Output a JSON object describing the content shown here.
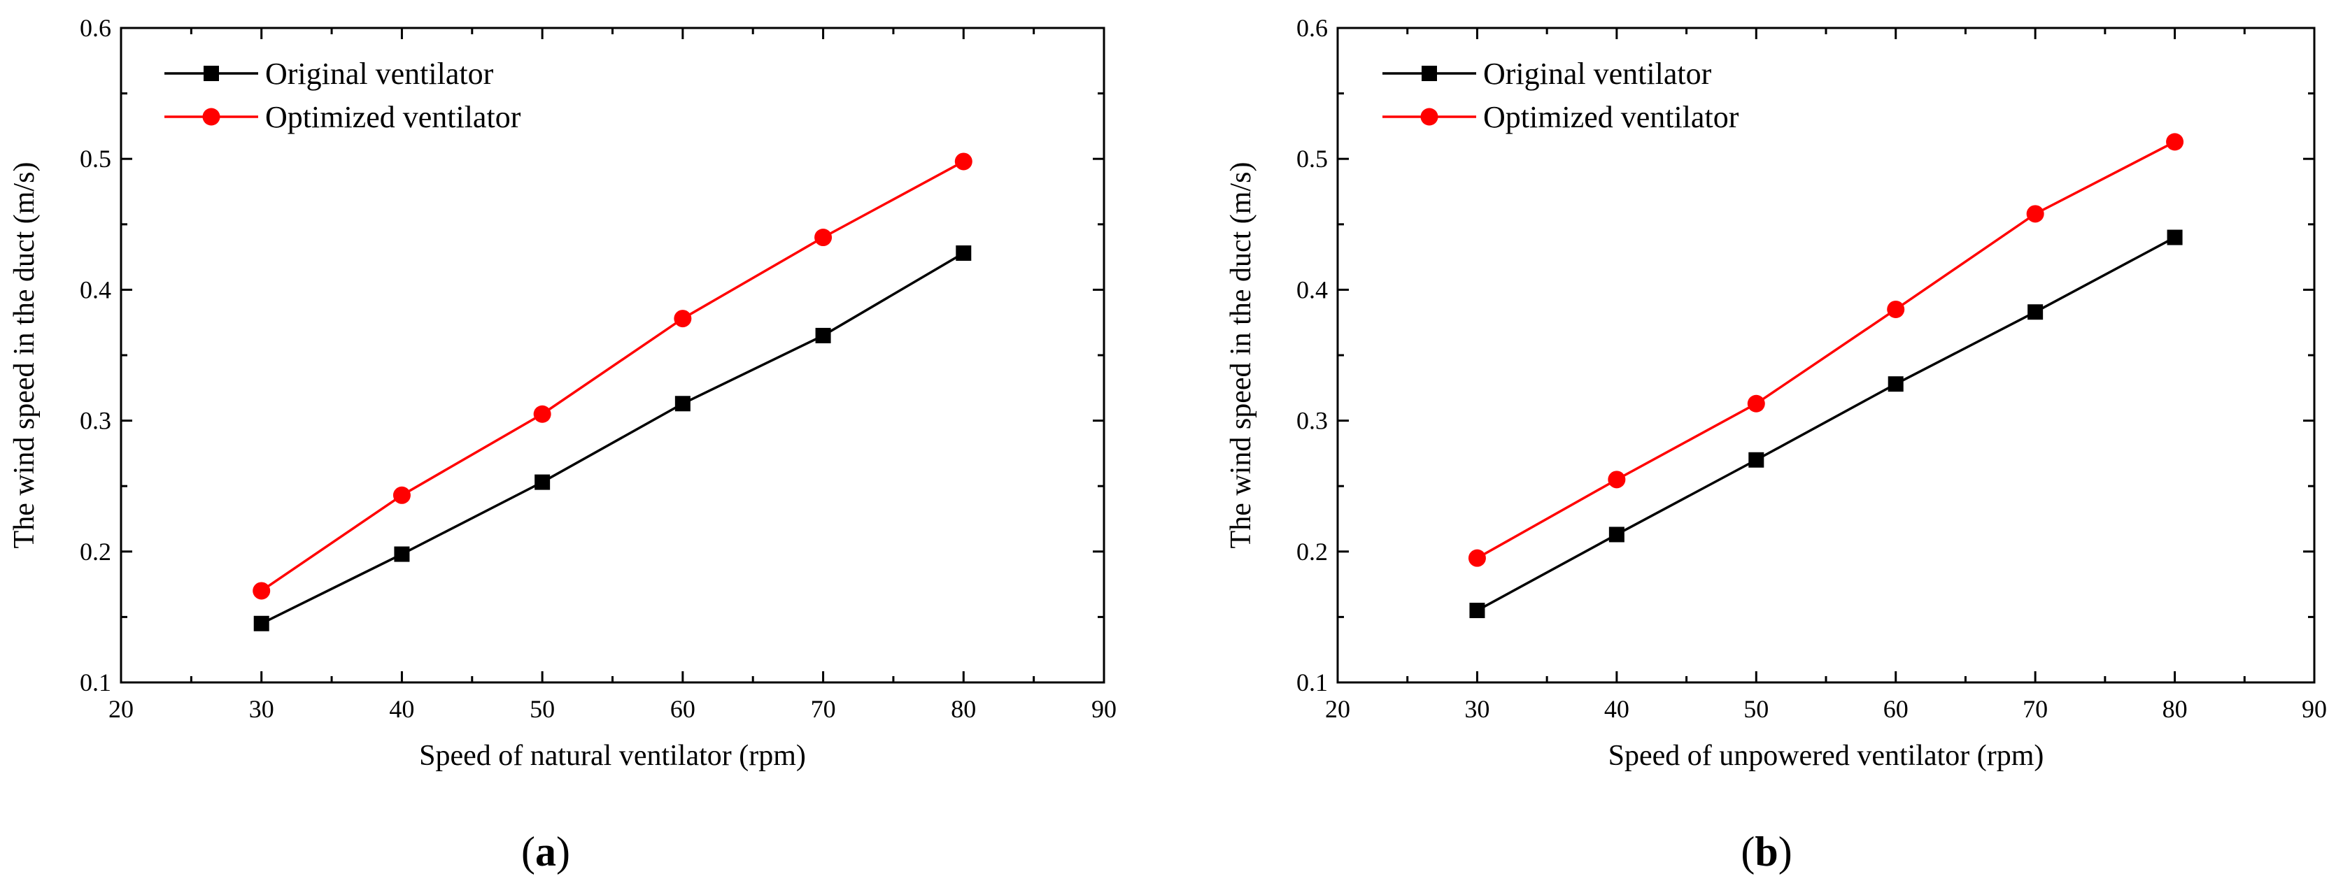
{
  "chart_data": [
    {
      "type": "line",
      "panel_label": "a",
      "title": "",
      "xlabel": "Speed of natural ventilator (rpm)",
      "ylabel": "The wind speed in the duct (m/s)",
      "xlim": [
        20,
        90
      ],
      "ylim": [
        0.1,
        0.6
      ],
      "xticks": [
        20,
        30,
        40,
        50,
        60,
        70,
        80,
        90
      ],
      "yticks": [
        0.1,
        0.2,
        0.3,
        0.4,
        0.5,
        0.6
      ],
      "ytick_labels": [
        "0.1",
        "0.2",
        "0.3",
        "0.4",
        "0.5",
        "0.6"
      ],
      "grid": false,
      "legend_position": "top-left",
      "x": [
        30,
        40,
        50,
        60,
        70,
        80
      ],
      "series": [
        {
          "name": "Original ventilator",
          "color": "#000000",
          "marker": "square",
          "values": [
            0.145,
            0.198,
            0.253,
            0.313,
            0.365,
            0.428
          ]
        },
        {
          "name": "Optimized ventilator",
          "color": "#ff0000",
          "marker": "circle",
          "values": [
            0.17,
            0.243,
            0.305,
            0.378,
            0.44,
            0.498
          ]
        }
      ]
    },
    {
      "type": "line",
      "panel_label": "b",
      "title": "",
      "xlabel": "Speed of unpowered ventilator (rpm)",
      "ylabel": "The wind speed in the duct (m/s)",
      "xlim": [
        20,
        90
      ],
      "ylim": [
        0.1,
        0.6
      ],
      "xticks": [
        20,
        30,
        40,
        50,
        60,
        70,
        80,
        90
      ],
      "yticks": [
        0.1,
        0.2,
        0.3,
        0.4,
        0.5,
        0.6
      ],
      "ytick_labels": [
        "0.1",
        "0.2",
        "0.3",
        "0.4",
        "0.5",
        "0.6"
      ],
      "grid": false,
      "legend_position": "top-left",
      "x": [
        30,
        40,
        50,
        60,
        70,
        80
      ],
      "series": [
        {
          "name": "Original ventilator",
          "color": "#000000",
          "marker": "square",
          "values": [
            0.155,
            0.213,
            0.27,
            0.328,
            0.383,
            0.44
          ]
        },
        {
          "name": "Optimized ventilator",
          "color": "#ff0000",
          "marker": "circle",
          "values": [
            0.195,
            0.255,
            0.313,
            0.385,
            0.458,
            0.513
          ]
        }
      ]
    }
  ]
}
